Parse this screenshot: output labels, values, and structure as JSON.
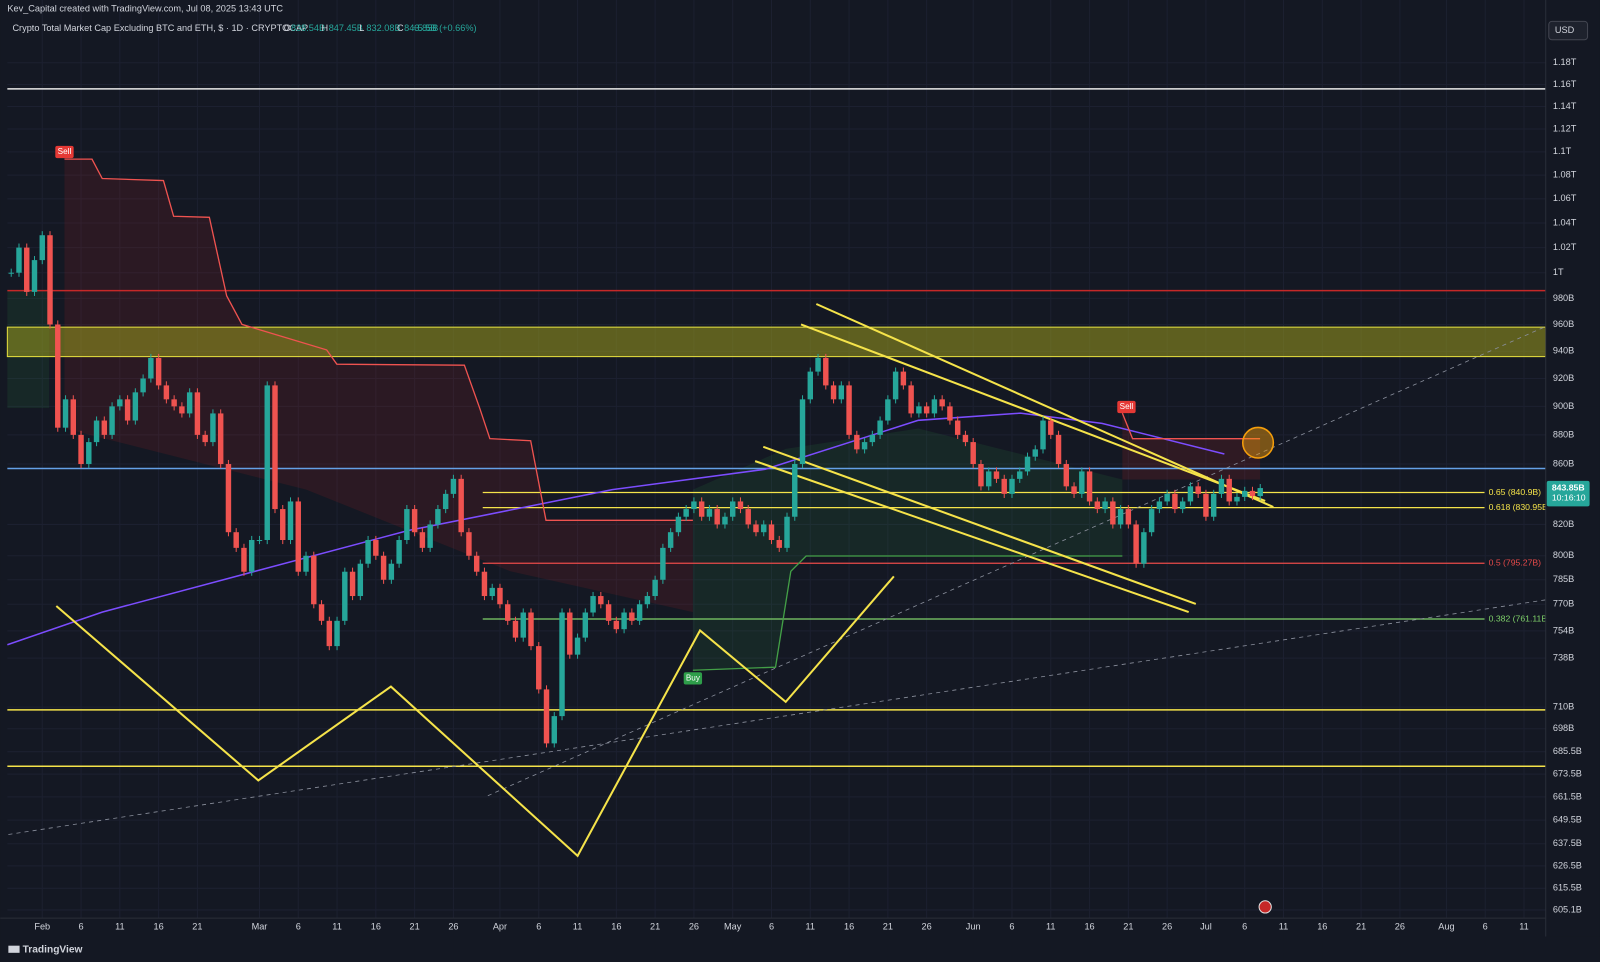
{
  "header": {
    "credit": "Kev_Capital created with TradingView.com, Jul 08, 2025 13:43 UTC",
    "brand": "TradingView"
  },
  "chart_data": {
    "type": "candlestick",
    "title": "Crypto Total Market Cap Excluding BTC and ETH, $ · 1D · CRYPTOCAP",
    "ohlc": [
      {
        "label": "O",
        "value": "838.54B"
      },
      {
        "label": "H",
        "value": "847.45B"
      },
      {
        "label": "L",
        "value": "832.08B"
      },
      {
        "label": "C",
        "value": "843.85B"
      }
    ],
    "change": "+5.5B (+0.66%)",
    "currency": "USD",
    "up_color": "#26a69a",
    "down_color": "#ef5350",
    "x": [
      -4,
      -3,
      -2,
      -1,
      0,
      1,
      2,
      3,
      4,
      5,
      6,
      7,
      8,
      9,
      10,
      11,
      12,
      13,
      14,
      15,
      16,
      17,
      18,
      19,
      20,
      21,
      22,
      23,
      24,
      25,
      26,
      27,
      28,
      29,
      30,
      31,
      32,
      33,
      34,
      35,
      36,
      37,
      38,
      39,
      40,
      41,
      42,
      43,
      44,
      45,
      46,
      47,
      48,
      49,
      50,
      51,
      52,
      53,
      54,
      55,
      56,
      57,
      58,
      59,
      60,
      61,
      62,
      63,
      64,
      65,
      66,
      67,
      68,
      69,
      70,
      71,
      72,
      73,
      74,
      75,
      76,
      77,
      78,
      79,
      80,
      81,
      82,
      83,
      84,
      85,
      86,
      87,
      88,
      89,
      90,
      91,
      92,
      93,
      94,
      95,
      96,
      97,
      98,
      99,
      100,
      101,
      102,
      103,
      104,
      105,
      106,
      107,
      108,
      109,
      110,
      111,
      112,
      113,
      114,
      115,
      116,
      117,
      118,
      119,
      120,
      121,
      122,
      123,
      124,
      125,
      126,
      127,
      128,
      129,
      130,
      131,
      132,
      133,
      134,
      135,
      136,
      137,
      138,
      139,
      140,
      141,
      142,
      143,
      144,
      145,
      146,
      147,
      148,
      149,
      150,
      151,
      152,
      153,
      154,
      155,
      156,
      157
    ],
    "values": [
      1000,
      1020,
      985,
      1010,
      1030,
      960,
      885,
      905,
      880,
      860,
      875,
      890,
      880,
      900,
      905,
      890,
      910,
      920,
      935,
      915,
      905,
      900,
      895,
      910,
      880,
      875,
      895,
      860,
      815,
      805,
      790,
      810,
      810,
      915,
      830,
      810,
      835,
      790,
      800,
      770,
      760,
      745,
      760,
      790,
      775,
      795,
      810,
      800,
      785,
      795,
      810,
      830,
      815,
      805,
      820,
      830,
      840,
      850,
      815,
      800,
      790,
      775,
      780,
      770,
      760,
      750,
      765,
      745,
      720,
      690,
      705,
      765,
      740,
      750,
      765,
      775,
      770,
      760,
      755,
      765,
      760,
      770,
      775,
      785,
      805,
      815,
      825,
      830,
      835,
      825,
      830,
      820,
      825,
      835,
      830,
      820,
      815,
      820,
      810,
      805,
      825,
      860,
      905,
      925,
      935,
      915,
      905,
      915,
      880,
      870,
      875,
      880,
      890,
      905,
      925,
      915,
      895,
      900,
      895,
      905,
      900,
      890,
      880,
      875,
      860,
      845,
      855,
      850,
      840,
      850,
      855,
      865,
      870,
      890,
      880,
      860,
      845,
      840,
      855,
      835,
      830,
      835,
      820,
      830,
      820,
      795,
      815,
      830,
      835,
      840,
      830,
      835,
      845,
      840,
      825,
      840,
      850,
      835,
      838,
      842,
      838.54,
      843.85
    ],
    "xlim": [
      -4.5,
      193.8
    ],
    "xticks": [
      {
        "value": 0,
        "label": "Feb"
      },
      {
        "value": 5,
        "label": "6"
      },
      {
        "value": 10,
        "label": "11"
      },
      {
        "value": 15,
        "label": "16"
      },
      {
        "value": 20,
        "label": "21"
      },
      {
        "value": 28,
        "label": "Mar"
      },
      {
        "value": 33,
        "label": "6"
      },
      {
        "value": 38,
        "label": "11"
      },
      {
        "value": 43,
        "label": "16"
      },
      {
        "value": 48,
        "label": "21"
      },
      {
        "value": 53,
        "label": "26"
      },
      {
        "value": 59,
        "label": "Apr"
      },
      {
        "value": 64,
        "label": "6"
      },
      {
        "value": 69,
        "label": "11"
      },
      {
        "value": 74,
        "label": "16"
      },
      {
        "value": 79,
        "label": "21"
      },
      {
        "value": 84,
        "label": "26"
      },
      {
        "value": 89,
        "label": "May"
      },
      {
        "value": 94,
        "label": "6"
      },
      {
        "value": 99,
        "label": "11"
      },
      {
        "value": 104,
        "label": "16"
      },
      {
        "value": 109,
        "label": "21"
      },
      {
        "value": 114,
        "label": "26"
      },
      {
        "value": 120,
        "label": "Jun"
      },
      {
        "value": 125,
        "label": "6"
      },
      {
        "value": 130,
        "label": "11"
      },
      {
        "value": 135,
        "label": "16"
      },
      {
        "value": 140,
        "label": "21"
      },
      {
        "value": 145,
        "label": "26"
      },
      {
        "value": 150,
        "label": "Jul"
      },
      {
        "value": 155,
        "label": "6"
      },
      {
        "value": 160,
        "label": "11"
      },
      {
        "value": 165,
        "label": "16"
      },
      {
        "value": 170,
        "label": "21"
      },
      {
        "value": 175,
        "label": "26"
      },
      {
        "value": 181,
        "label": "Aug"
      },
      {
        "value": 186,
        "label": "6"
      },
      {
        "value": 191,
        "label": "11"
      }
    ],
    "ylim": [
      601.2,
      1225
    ],
    "log": true,
    "grid": true,
    "yticks": [
      {
        "value": 1180,
        "label": "1.18T"
      },
      {
        "value": 1160,
        "label": "1.16T"
      },
      {
        "value": 1140,
        "label": "1.14T"
      },
      {
        "value": 1120,
        "label": "1.12T"
      },
      {
        "value": 1100,
        "label": "1.1T"
      },
      {
        "value": 1080,
        "label": "1.08T"
      },
      {
        "value": 1060,
        "label": "1.06T"
      },
      {
        "value": 1040,
        "label": "1.04T"
      },
      {
        "value": 1020,
        "label": "1.02T"
      },
      {
        "value": 1000,
        "label": "1T"
      },
      {
        "value": 980,
        "label": "980B"
      },
      {
        "value": 960,
        "label": "960B"
      },
      {
        "value": 940,
        "label": "940B"
      },
      {
        "value": 920,
        "label": "920B"
      },
      {
        "value": 900,
        "label": "900B"
      },
      {
        "value": 880,
        "label": "880B"
      },
      {
        "value": 860,
        "label": "860B"
      },
      {
        "value": 820,
        "label": "820B"
      },
      {
        "value": 800,
        "label": "800B"
      },
      {
        "value": 785,
        "label": "785B"
      },
      {
        "value": 770,
        "label": "770B"
      },
      {
        "value": 754,
        "label": "754B"
      },
      {
        "value": 738,
        "label": "738B"
      },
      {
        "value": 710,
        "label": "710B"
      },
      {
        "value": 698,
        "label": "698B"
      },
      {
        "value": 685.5,
        "label": "685.5B"
      },
      {
        "value": 673.5,
        "label": "673.5B"
      },
      {
        "value": 661.5,
        "label": "661.5B"
      },
      {
        "value": 649.5,
        "label": "649.5B"
      },
      {
        "value": 637.5,
        "label": "637.5B"
      },
      {
        "value": 626.5,
        "label": "626.5B"
      },
      {
        "value": 615.5,
        "label": "615.5B"
      },
      {
        "value": 605.1,
        "label": "605.1B"
      }
    ],
    "zone": {
      "from": 936,
      "to": 958,
      "color": "#9a9a1e"
    },
    "levels": [
      {
        "value": 1156,
        "color": "#e8e8e8"
      },
      {
        "value": 986,
        "color": "#c62828"
      },
      {
        "value": 857,
        "color": "#64a0e6"
      },
      {
        "value": 708.5,
        "color": "#f5e34a"
      },
      {
        "value": 677.7,
        "color": "#f5e34a"
      }
    ],
    "fib_levels": [
      {
        "value": 840.9,
        "label": "0.65 (840.9B)",
        "color": "#f5e34a"
      },
      {
        "value": 830.95,
        "label": "0.618 (830.95B)",
        "color": "#f5e34a"
      },
      {
        "value": 795.27,
        "label": "0.5 (795.27B)",
        "color": "#e84a4a"
      },
      {
        "value": 761.11,
        "label": "0.382 (761.11B)",
        "color": "#7fd16a"
      }
    ],
    "signals": [
      {
        "label": "Sell",
        "color": "#e53935"
      },
      {
        "label": "Buy",
        "color": "#2e9e4a"
      },
      {
        "label": "Sell",
        "color": "#e53935"
      }
    ],
    "last_price": {
      "value": 843.85,
      "label": "843.85B"
    },
    "countdown": "10:16:10"
  }
}
